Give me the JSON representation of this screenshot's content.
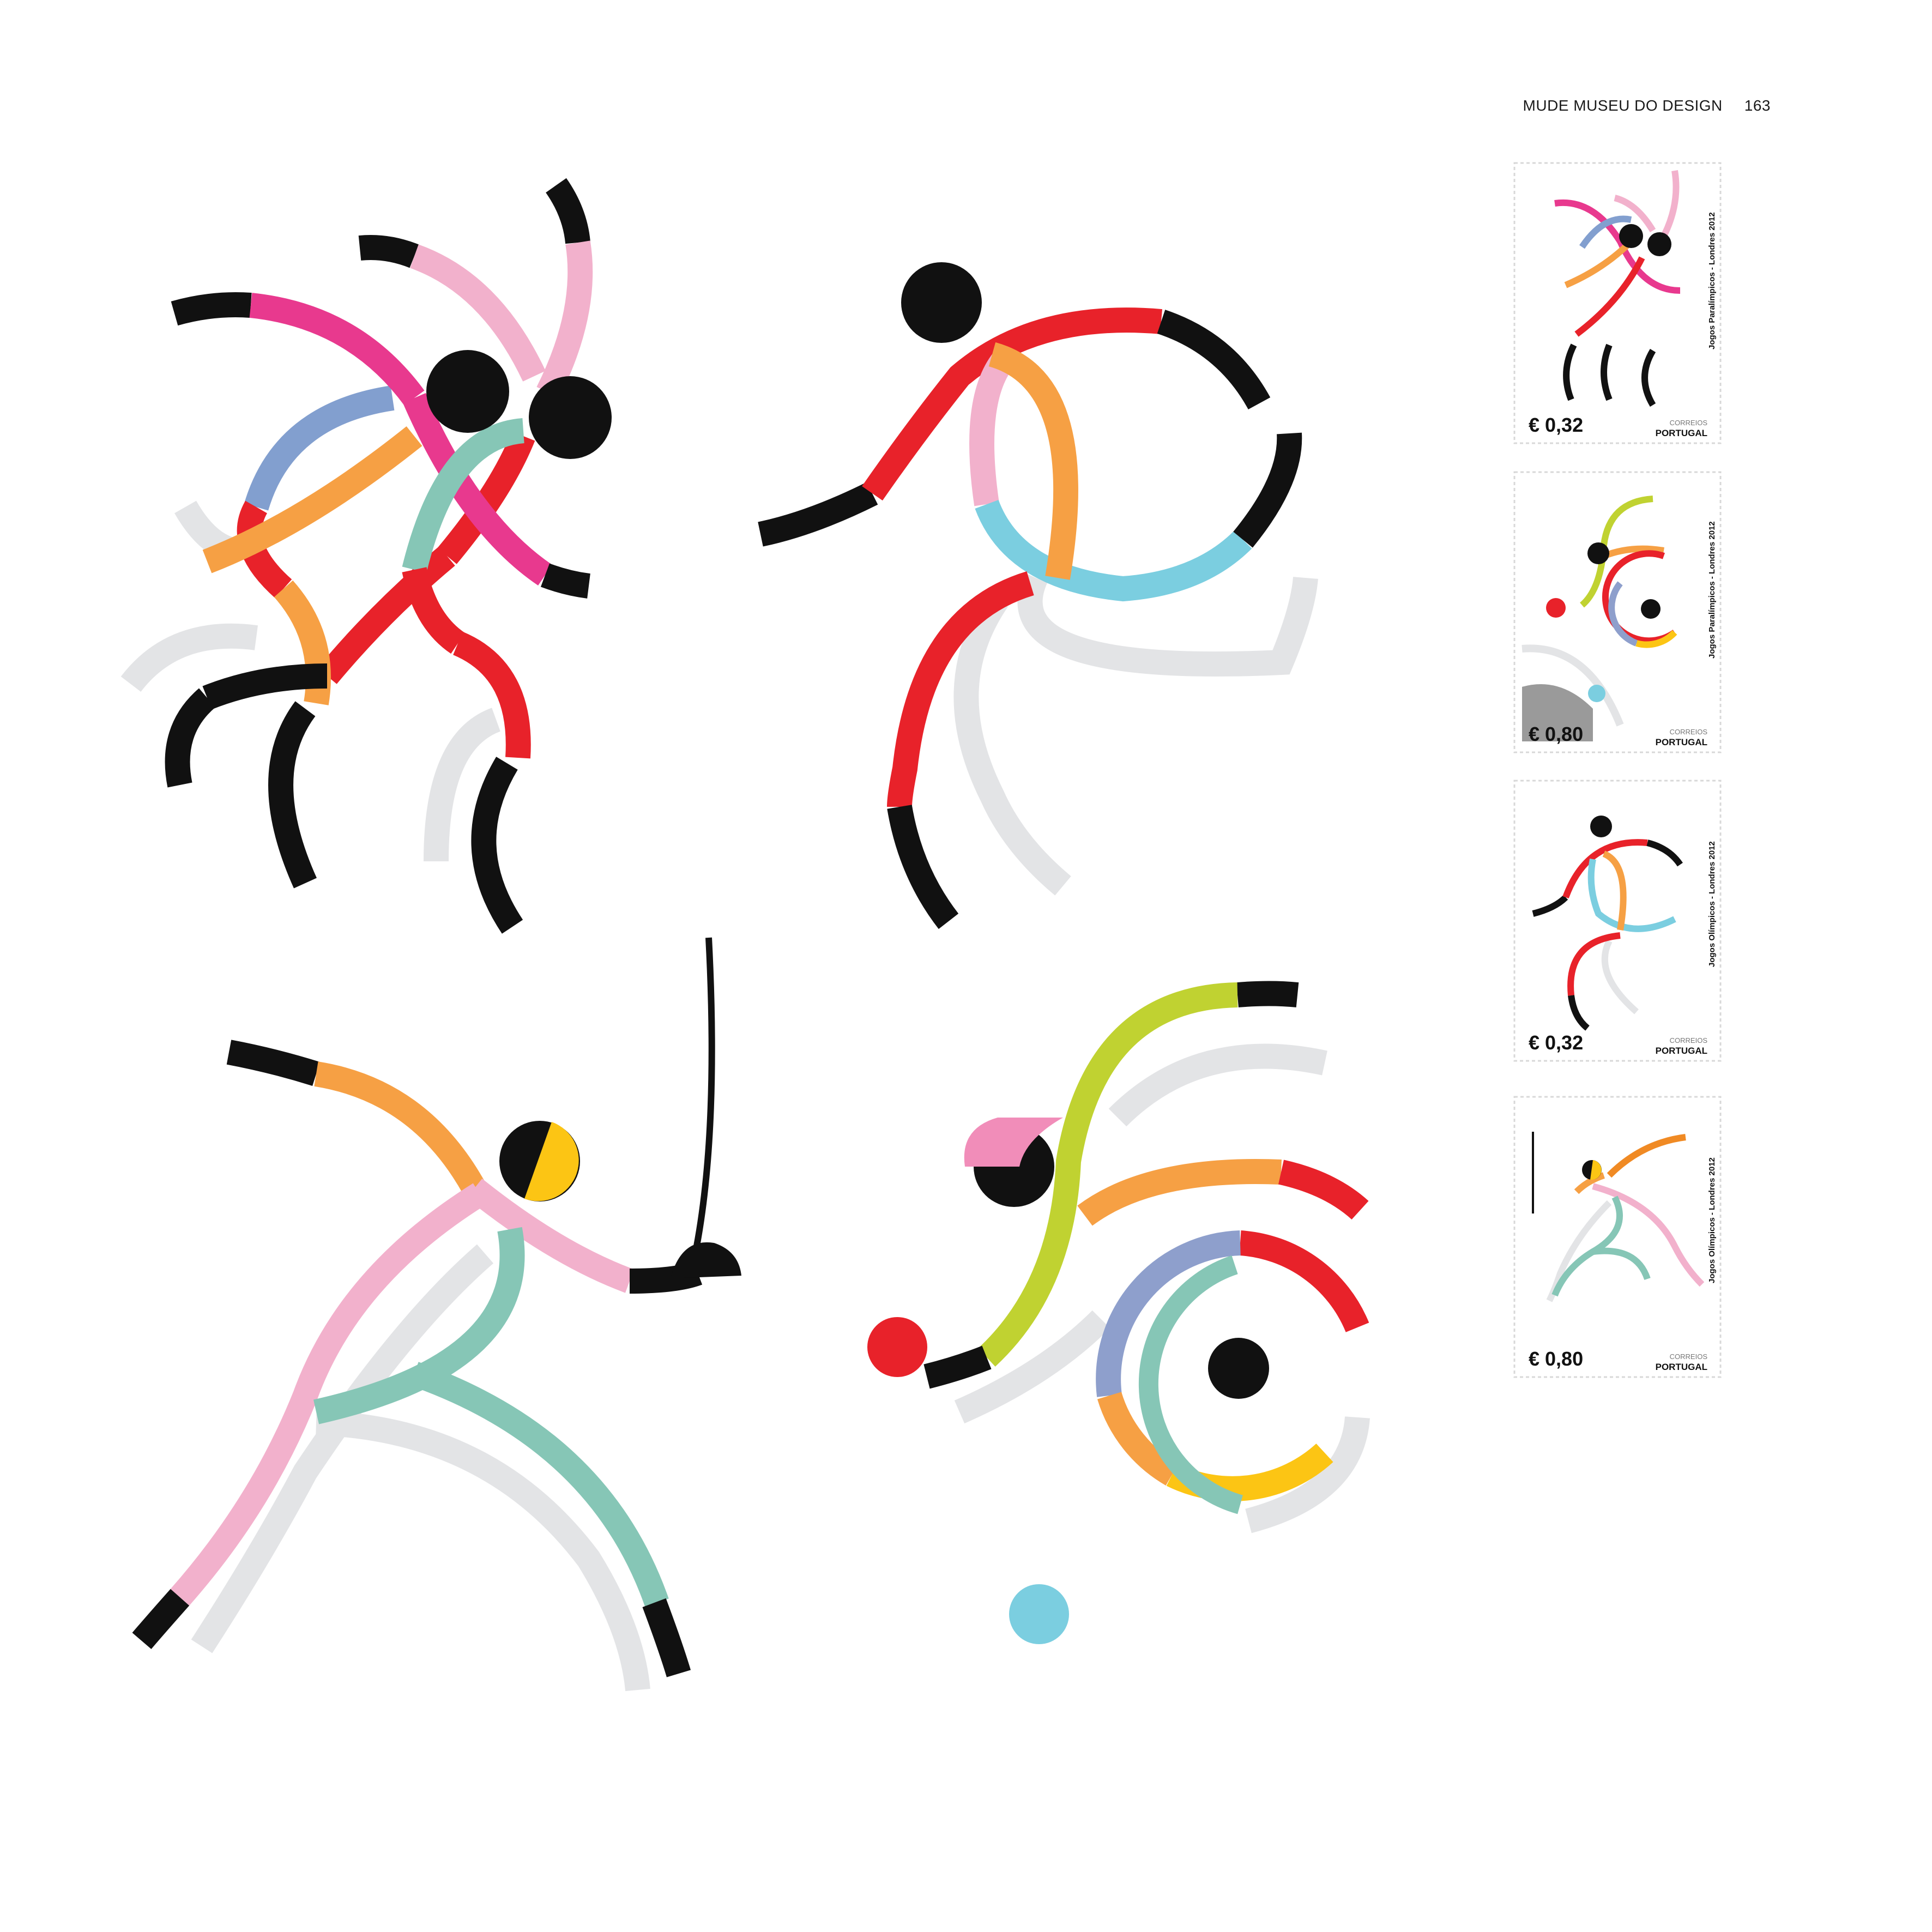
{
  "header": {
    "title": "MUDE MUSEU DO DESIGN",
    "page_number": "163"
  },
  "stamps": [
    {
      "title": "Jogos Paralímpicos - Londres 2012",
      "value": "€ 0,32",
      "issuer": "CORREIOS",
      "country": "PORTUGAL"
    },
    {
      "title": "Jogos Paralímpicos - Londres 2012",
      "value": "€ 0,80",
      "issuer": "CORREIOS",
      "country": "PORTUGAL"
    },
    {
      "title": "Jogos Olímpicos - Londres 2012",
      "value": "€ 0,32",
      "issuer": "CORREIOS",
      "country": "PORTUGAL"
    },
    {
      "title": "Jogos Olímpicos - Londres 2012",
      "value": "€ 0,80",
      "issuer": "CORREIOS",
      "country": "PORTUGAL"
    }
  ],
  "colors": {
    "black": "#111111",
    "red": "#e8222a",
    "pink": "#f2b1cc",
    "magenta": "#e8398e",
    "orange": "#f6a044",
    "blue": "#829fcf",
    "teal": "#86c6b6",
    "gray": "#e3e4e6",
    "cyan": "#7bcee0",
    "lime": "#c0d231",
    "yellow": "#fcc514",
    "periwinkle": "#8e9fcc"
  }
}
